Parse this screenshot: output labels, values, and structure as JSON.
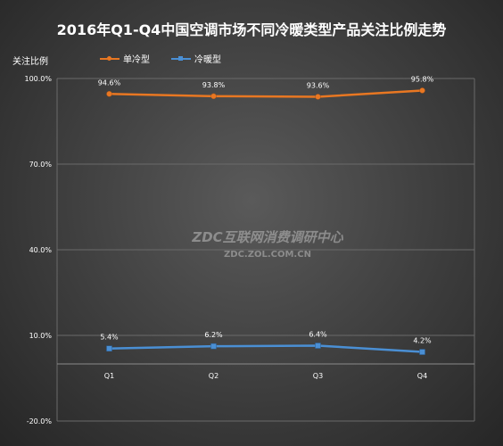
{
  "chart_data": {
    "type": "line",
    "title": "2016年Q1-Q4中国空调市场不同冷暖类型产品关注比例走势",
    "ylabel": "关注比例",
    "categories": [
      "Q1",
      "Q2",
      "Q3",
      "Q4"
    ],
    "series": [
      {
        "name": "单冷型",
        "values": [
          94.6,
          93.8,
          93.6,
          95.8
        ],
        "labels": [
          "94.6%",
          "93.8%",
          "93.6%",
          "95.8%"
        ],
        "color": "#e87722",
        "marker": "circle"
      },
      {
        "name": "冷暖型",
        "values": [
          5.4,
          6.2,
          6.4,
          4.2
        ],
        "labels": [
          "5.4%",
          "6.2%",
          "6.4%",
          "4.2%"
        ],
        "color": "#4a8fd4",
        "marker": "square"
      }
    ],
    "ylim": [
      -20,
      100
    ],
    "yticks": [
      100,
      70,
      40,
      10,
      -20
    ],
    "ytick_labels": [
      "100.0%",
      "70.0%",
      "40.0%",
      "10.0%",
      "-20.0%"
    ],
    "legend_position": "top-left",
    "grid": true
  },
  "watermark": {
    "main": "ZDC互联网消费调研中心",
    "sub": "ZDC.ZOL.COM.CN"
  }
}
